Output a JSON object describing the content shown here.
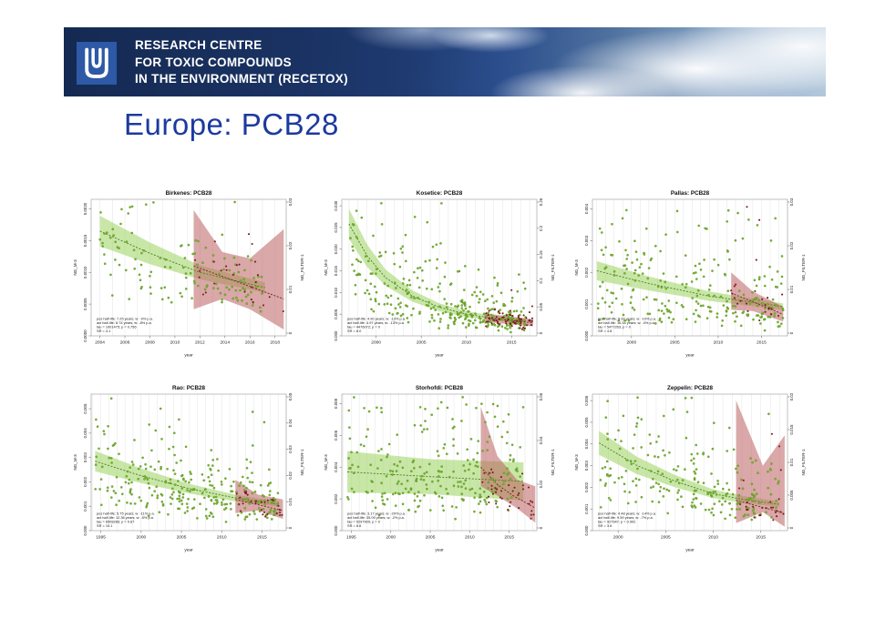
{
  "banner": {
    "lines": [
      "RESEARCH CENTRE",
      "FOR TOXIC COMPOUNDS",
      "IN THE ENVIRONMENT (RECETOX)"
    ],
    "logo": "masaryk-university-emblem"
  },
  "slide": {
    "title": "Europe: PCB28"
  },
  "colors": {
    "title_blue": "#1c3a9e",
    "banner_navy": "#1a3262",
    "logo_blue": "#2d59a6",
    "green_point": "#76b82a",
    "green_point_edge": "#4d7a1a",
    "green_band": "rgba(146,208,80,0.50)",
    "green_line": "#4e7d1d",
    "red_point": "#7a1f1f",
    "red_band": "rgba(187,96,96,0.55)",
    "red_line": "#7a2020",
    "grid_line": "#e4e4e4",
    "axis": "#777777",
    "text": "#222222"
  },
  "chart_shared": {
    "xlabel": "year",
    "ylabel_left": "NG_M-3",
    "ylabel_right": "NG_FILTER-1"
  },
  "chart_data": [
    {
      "type": "scatter",
      "station": "birkenes",
      "title": "Birkenes: PCB28",
      "x_range": [
        2003.3,
        2018.9
      ],
      "x_ticks": [
        2004,
        2006,
        2008,
        2010,
        2012,
        2014,
        2016,
        2018
      ],
      "y_range": [
        0,
        0.00215
      ],
      "y_ticks_left": [
        "0.0020",
        "0.0015",
        "0.0010",
        "0.0005",
        "0.0000"
      ],
      "y_ticks_right": [
        "0.03",
        "0.02",
        "0.01",
        "0"
      ],
      "annotation": [
        "pos half-life: 7.25 years; w: -9% p.a.",
        "act half-life: 8.74 years; w: -8% p.a.",
        "tau = 1001475; p = 0.756",
        "SR = 4.1"
      ],
      "seed": 3,
      "series": [
        {
          "kind": "green",
          "name": "green-series",
          "line": [
            [
              2004,
              0.00165
            ],
            [
              2008,
              0.0013
            ],
            [
              2012,
              0.001
            ],
            [
              2017.2,
              0.00076
            ]
          ],
          "band": [
            [
              2004,
              0.00189,
              0.00141
            ],
            [
              2008,
              0.00147,
              0.00113
            ],
            [
              2012,
              0.00111,
              0.00089
            ],
            [
              2017.2,
              0.00084,
              0.00068
            ]
          ],
          "n": 140,
          "sigma": 0.42,
          "outlier_rate": 0.05
        },
        {
          "kind": "red",
          "name": "red-series",
          "line": [
            [
              2011.5,
              0.0011
            ],
            [
              2015,
              0.00085
            ],
            [
              2018.7,
              0.00058
            ]
          ],
          "band": [
            [
              2011.5,
              0.00198,
              0.00042
            ],
            [
              2013.8,
              0.00132,
              0.00058
            ],
            [
              2016,
              0.00122,
              0.00042
            ],
            [
              2018.7,
              0.00168,
              0.0001
            ]
          ],
          "n": 26,
          "sigma": 0.3,
          "outlier_rate": 0.02
        }
      ]
    },
    {
      "type": "scatter",
      "station": "kosetice",
      "title": "Kosetice: PCB28",
      "x_range": [
        1996.2,
        2017.8
      ],
      "x_ticks": [
        2000,
        2005,
        2010,
        2015
      ],
      "y_range": [
        0,
        0.0315
      ],
      "y_ticks_left": [
        "0.030",
        "0.025",
        "0.020",
        "0.015",
        "0.010",
        "0.005",
        "0.000"
      ],
      "y_ticks_right": [
        "0.25",
        "0.2",
        "0.15",
        "0.1",
        "0.05",
        "0"
      ],
      "annotation": [
        "pos half-life: 4.90 years; w: -13% p.a.",
        "act half-life: 4.97 years; w: -13% p.a.",
        "tau = 4476072; p = 0",
        "SR = 8.0"
      ],
      "seed": 7,
      "series": [
        {
          "kind": "green",
          "name": "green-series",
          "line": [
            [
              1997,
              0.0258
            ],
            [
              1999,
              0.0185
            ],
            [
              2001,
              0.0135
            ],
            [
              2004,
              0.0092
            ],
            [
              2007,
              0.0066
            ],
            [
              2010,
              0.005
            ],
            [
              2013,
              0.0041
            ],
            [
              2016.6,
              0.0034
            ]
          ],
          "band": [
            [
              1997,
              0.0293,
              0.0223
            ],
            [
              1999,
              0.0211,
              0.0159
            ],
            [
              2001,
              0.0154,
              0.0116
            ],
            [
              2004,
              0.0105,
              0.0079
            ],
            [
              2007,
              0.0075,
              0.0057
            ],
            [
              2010,
              0.0057,
              0.0043
            ],
            [
              2013,
              0.0047,
              0.0035
            ],
            [
              2016.6,
              0.0039,
              0.0029
            ]
          ],
          "n": 320,
          "sigma": 0.55,
          "outlier_rate": 0.03
        },
        {
          "kind": "red",
          "name": "red-series",
          "line": [
            [
              2012,
              0.0042
            ],
            [
              2017.4,
              0.003
            ]
          ],
          "band": [
            [
              2012,
              0.0052,
              0.0032
            ],
            [
              2017.4,
              0.0038,
              0.0022
            ]
          ],
          "n": 70,
          "sigma": 0.25,
          "outlier_rate": 0.02
        }
      ]
    },
    {
      "type": "scatter",
      "station": "pallas",
      "title": "Pallas: PCB28",
      "x_range": [
        1995.5,
        2018
      ],
      "x_ticks": [
        2000,
        2005,
        2010,
        2015
      ],
      "y_range": [
        0,
        0.0043
      ],
      "y_ticks_left": [
        "0.004",
        "0.003",
        "0.002",
        "0.001",
        "0.000"
      ],
      "y_ticks_right": [
        "0.03",
        "0.02",
        "0.01",
        "0"
      ],
      "annotation": [
        "pos half-life: 5.92 years; w: -10% p.a.",
        "act half-life: 16.34 years; w: -4% p.a.",
        "tau = 5477263; p = 0",
        "SR = 4.8"
      ],
      "seed": 11,
      "series": [
        {
          "kind": "green",
          "name": "green-series",
          "line": [
            [
              1996,
              0.00205
            ],
            [
              2002,
              0.00165
            ],
            [
              2009,
              0.00125
            ],
            [
              2017.5,
              0.00092
            ]
          ],
          "band": [
            [
              1996,
              0.00235,
              0.00175
            ],
            [
              2002,
              0.00187,
              0.00143
            ],
            [
              2009,
              0.0014,
              0.0011
            ],
            [
              2017.5,
              0.00102,
              0.00082
            ]
          ],
          "n": 260,
          "sigma": 0.6,
          "outlier_rate": 0.05
        },
        {
          "kind": "red",
          "name": "red-series",
          "line": [
            [
              2011.5,
              0.00135
            ],
            [
              2017.5,
              0.00068
            ]
          ],
          "band": [
            [
              2011.5,
              0.002,
              0.00082
            ],
            [
              2014,
              0.0014,
              0.00078
            ],
            [
              2017.5,
              0.00092,
              0.00045
            ]
          ],
          "n": 24,
          "sigma": 0.32,
          "outlier_rate": 0.04
        }
      ]
    },
    {
      "type": "scatter",
      "station": "rao",
      "title": "Rao: PCB28",
      "x_range": [
        1993.8,
        2018
      ],
      "x_ticks": [
        1995,
        2000,
        2005,
        2010,
        2015
      ],
      "y_range": [
        0,
        0.0056
      ],
      "y_ticks_left": [
        "0.005",
        "0.004",
        "0.003",
        "0.002",
        "0.001",
        "0.000"
      ],
      "y_ticks_right": [
        "0.05",
        "0.04",
        "0.03",
        "0.02",
        "0.01",
        "0"
      ],
      "annotation": [
        "pos half-life: 5.75 years; w: -11% p.a.",
        "act half-life: 12.36 years; w: -5% p.a.",
        "tau = 6508286; p = 0.67",
        "SR = 10.1"
      ],
      "seed": 13,
      "series": [
        {
          "kind": "green",
          "name": "green-series",
          "line": [
            [
              1994.3,
              0.00285
            ],
            [
              2000,
              0.00225
            ],
            [
              2006,
              0.00172
            ],
            [
              2011.5,
              0.00135
            ],
            [
              2017,
              0.00108
            ]
          ],
          "band": [
            [
              1994.3,
              0.00327,
              0.00243
            ],
            [
              2000,
              0.00255,
              0.00195
            ],
            [
              2006,
              0.00192,
              0.00152
            ],
            [
              2011.5,
              0.00149,
              0.00121
            ],
            [
              2017,
              0.00118,
              0.00098
            ]
          ],
          "n": 300,
          "sigma": 0.5,
          "outlier_rate": 0.04
        },
        {
          "kind": "red",
          "name": "red-series",
          "line": [
            [
              2011.7,
              0.00128
            ],
            [
              2017.6,
              0.00082
            ]
          ],
          "band": [
            [
              2011.7,
              0.00208,
              0.00072
            ],
            [
              2014.5,
              0.00148,
              0.00082
            ],
            [
              2017.6,
              0.00128,
              0.00048
            ]
          ],
          "n": 30,
          "sigma": 0.3,
          "outlier_rate": 0.03
        }
      ]
    },
    {
      "type": "scatter",
      "station": "storhofdi",
      "title": "Storhofdi: PCB28",
      "x_range": [
        1993.8,
        2018.5
      ],
      "x_ticks": [
        1995,
        2000,
        2005,
        2010,
        2015
      ],
      "y_range": [
        0,
        0.0086
      ],
      "y_ticks_left": [
        "0.008",
        "0.006",
        "0.004",
        "0.002",
        "0.000"
      ],
      "y_ticks_right": [
        "0.06",
        "0.04",
        "0.02",
        "0"
      ],
      "annotation": [
        "pos half-life: 3.17 years; w: -20% p.a.",
        "act half-life: 35.09 years; w: -2% p.a.",
        "tau = 5297909; p = 0",
        "SR = 8.6"
      ],
      "seed": 17,
      "series": [
        {
          "kind": "green",
          "name": "green-series",
          "line": [
            [
              1994.5,
              0.0037
            ],
            [
              2005,
              0.0034
            ],
            [
              2016.8,
              0.0031
            ]
          ],
          "band": [
            [
              1994.5,
              0.005,
              0.0024
            ],
            [
              2005,
              0.0045,
              0.0023
            ],
            [
              2016.8,
              0.0043,
              0.0019
            ]
          ],
          "n": 260,
          "sigma": 0.55,
          "outlier_rate": 0.04
        },
        {
          "kind": "red",
          "name": "red-series",
          "line": [
            [
              2011.4,
              0.004
            ],
            [
              2013.5,
              0.0029
            ],
            [
              2015.5,
              0.0022
            ],
            [
              2018.2,
              0.00145
            ]
          ],
          "band": [
            [
              2011.4,
              0.0078,
              0.0028
            ],
            [
              2013.5,
              0.0047,
              0.0022
            ],
            [
              2016,
              0.0032,
              0.0014
            ],
            [
              2018.3,
              0.0028,
              0.0005
            ]
          ],
          "n": 40,
          "sigma": 0.35,
          "outlier_rate": 0.04
        }
      ]
    },
    {
      "type": "scatter",
      "station": "zeppelin",
      "title": "Zeppelin: PCB28",
      "x_range": [
        1997.3,
        2017.8
      ],
      "x_ticks": [
        2000,
        2005,
        2010,
        2015
      ],
      "y_range": [
        0,
        0.0063
      ],
      "y_ticks_left": [
        "0.006",
        "0.005",
        "0.004",
        "0.003",
        "0.002",
        "0.001",
        "0.000"
      ],
      "y_ticks_right": [
        "0.02",
        "0.015",
        "0.01",
        "0.005",
        "0"
      ],
      "annotation": [
        "pos half-life: 4.48 years; w: -14% p.a.",
        "act half-life: 9.59 years; w: -7% p.a.",
        "tau = 927647; p = 0.902",
        "SR = 3.6"
      ],
      "seed": 23,
      "series": [
        {
          "kind": "green",
          "name": "green-series",
          "line": [
            [
              1998,
              0.00405
            ],
            [
              2002,
              0.003
            ],
            [
              2006,
              0.00228
            ],
            [
              2010,
              0.0017
            ],
            [
              2013,
              0.00145
            ],
            [
              2016.9,
              0.00122
            ]
          ],
          "band": [
            [
              1998,
              0.0046,
              0.0035
            ],
            [
              2002,
              0.0034,
              0.0026
            ],
            [
              2006,
              0.00256,
              0.002
            ],
            [
              2010,
              0.0019,
              0.0015
            ],
            [
              2013,
              0.00161,
              0.00129
            ],
            [
              2016.9,
              0.00135,
              0.00109
            ]
          ],
          "n": 230,
          "sigma": 0.5,
          "outlier_rate": 0.04
        },
        {
          "kind": "red",
          "name": "red-series",
          "line": [
            [
              2012.4,
              0.0014
            ],
            [
              2017.4,
              0.00082
            ]
          ],
          "band": [
            [
              2012.4,
              0.006,
              0.00035
            ],
            [
              2015.2,
              0.003,
              0.00085
            ],
            [
              2017.5,
              0.0044,
              0.00018
            ]
          ],
          "n": 26,
          "sigma": 0.4,
          "outlier_rate": 0.05
        }
      ]
    }
  ]
}
